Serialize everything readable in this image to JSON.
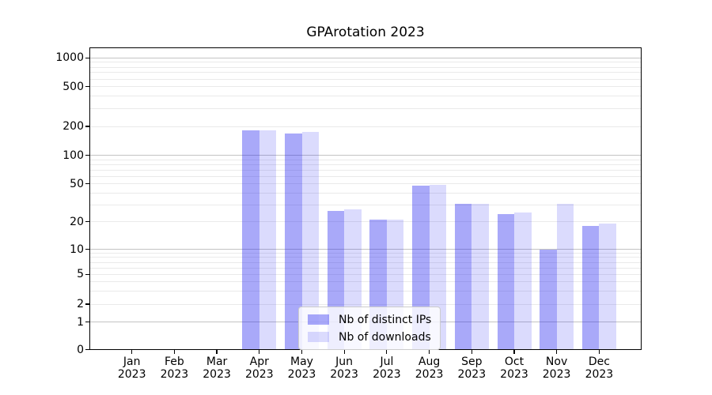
{
  "chart_data": {
    "type": "bar",
    "title": "GPArotation 2023",
    "categories": [
      "Jan 2023",
      "Feb 2023",
      "Mar 2023",
      "Apr 2023",
      "May 2023",
      "Jun 2023",
      "Jul 2023",
      "Aug 2023",
      "Sep 2023",
      "Oct 2023",
      "Nov 2023",
      "Dec 2023"
    ],
    "series": [
      {
        "name": "Nb of distinct IPs",
        "fill": "rgba(30,30,240,0.38)",
        "fill_hex": "#aaaaf9",
        "values": [
          0,
          0,
          0,
          183,
          170,
          26,
          21,
          48,
          31,
          24,
          10,
          18
        ]
      },
      {
        "name": "Nb of downloads",
        "fill": "rgba(30,30,240,0.16)",
        "fill_hex": "#dbdbfc",
        "values": [
          0,
          0,
          0,
          183,
          176,
          27,
          21,
          49,
          31,
          25,
          31,
          19
        ]
      }
    ],
    "xlabel": "",
    "ylabel": "",
    "y_scale": "symlog",
    "y_ticks": [
      0,
      1,
      2,
      5,
      10,
      20,
      50,
      100,
      200,
      500,
      1000
    ],
    "ylim": [
      0,
      1300
    ],
    "grid": true,
    "grid_major_color": "#c3c3c3",
    "grid_minor_color": "#eaeaea",
    "legend_position": "lower center"
  }
}
